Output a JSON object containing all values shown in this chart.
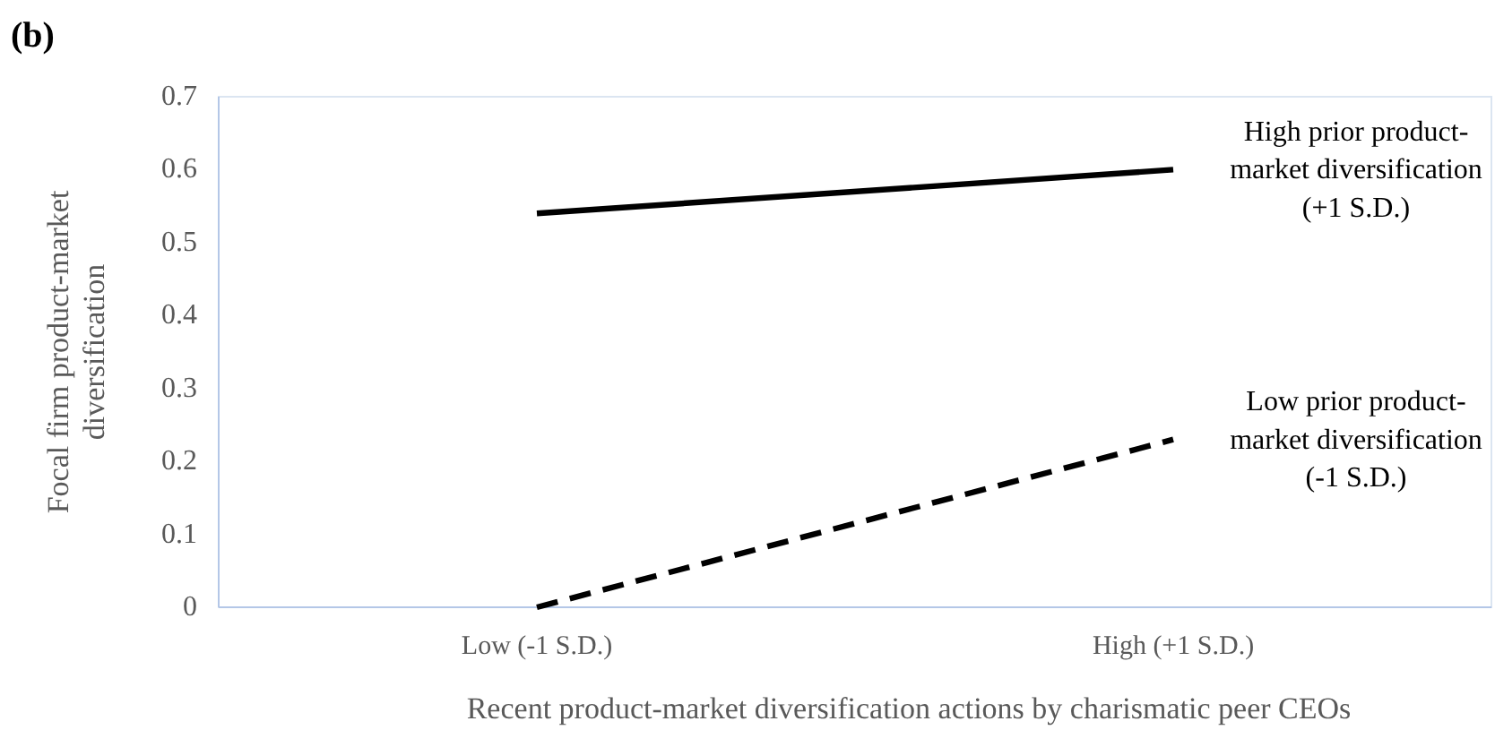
{
  "chart_data": {
    "type": "line",
    "title": "(b)",
    "xlabel": "Recent product-market diversification actions by charismatic peer CEOs",
    "ylabel": "Focal firm product-market diversification",
    "categories": [
      "Low (-1 S.D.)",
      "High (+1 S.D.)"
    ],
    "series": [
      {
        "name": "High prior product-market diversification (+1 S.D.)",
        "color": "#000000",
        "line_style": "solid",
        "values": [
          0.54,
          0.6
        ]
      },
      {
        "name": "Low prior product-market diversification (-1 S.D.)",
        "color": "#000000",
        "line_style": "dashed",
        "values": [
          0,
          0.23
        ]
      }
    ],
    "ylim": [
      0,
      0.7
    ],
    "yticks": [
      0,
      0.1,
      0.2,
      0.3,
      0.4,
      0.5,
      0.6,
      0.7
    ],
    "grid": false,
    "legend": false,
    "marker": "none"
  }
}
